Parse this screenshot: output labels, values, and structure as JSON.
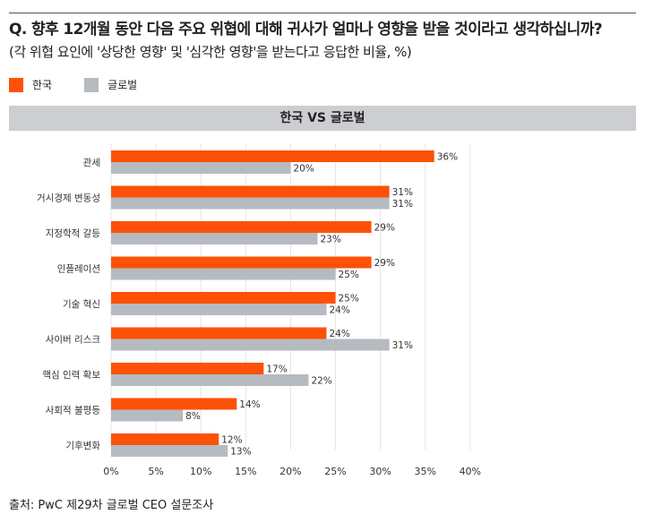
{
  "title": "Q. 향후 12개월 동안 다음 주요 위협에 대해 귀사가 얼마나 영향을 받을 것이라고 생각하십니까?",
  "subtitle": "(각 위협 요인에 '상당한 영향' 및 '심각한 영향'을 받는다고 응답한 비율, %)",
  "source": "출처: PwC 제29차 글로벌 CEO 설문조사",
  "chart_data": {
    "type": "bar",
    "orientation": "horizontal",
    "title": "한국 VS 글로벌",
    "categories": [
      "관세",
      "거시경제 변동성",
      "지정학적 갈등",
      "인플레이션",
      "기술 혁신",
      "사이버 리스크",
      "핵심 인력 확보",
      "사회적 불평등",
      "기후변화"
    ],
    "series": [
      {
        "name": "한국",
        "color": "#fd5108",
        "values": [
          36,
          31,
          29,
          29,
          25,
          24,
          17,
          14,
          12
        ]
      },
      {
        "name": "글로벌",
        "color": "#b6bac1",
        "values": [
          20,
          31,
          23,
          25,
          24,
          31,
          22,
          8,
          13
        ]
      }
    ],
    "xlim": [
      0,
      40
    ],
    "xticks": [
      "0%",
      "5%",
      "10%",
      "15%",
      "20%",
      "25%",
      "30%",
      "35%",
      "40%"
    ],
    "grid": true,
    "legend": "top-left"
  }
}
